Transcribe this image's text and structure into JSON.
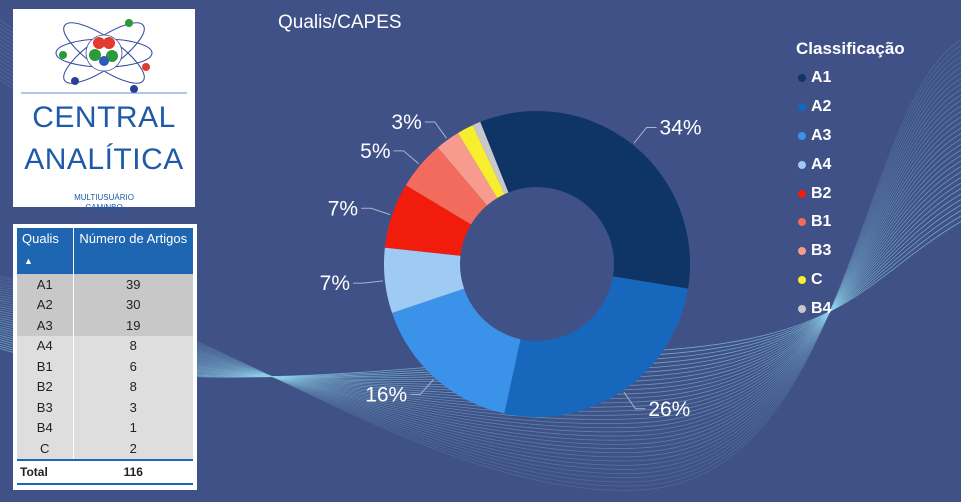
{
  "logo": {
    "title_line1": "CENTRAL",
    "title_line2": "ANALÍTICA",
    "subtitle_line1": "MULTIUSUÁRIO",
    "subtitle_line2": "CAM/NBQ"
  },
  "table": {
    "headers": [
      "Qualis",
      "Número de Artigos"
    ],
    "rows": [
      {
        "qualis": "A1",
        "count": "39"
      },
      {
        "qualis": "A2",
        "count": "30"
      },
      {
        "qualis": "A3",
        "count": "19"
      },
      {
        "qualis": "A4",
        "count": "8"
      },
      {
        "qualis": "B1",
        "count": "6"
      },
      {
        "qualis": "B2",
        "count": "8"
      },
      {
        "qualis": "B3",
        "count": "3"
      },
      {
        "qualis": "B4",
        "count": "1"
      },
      {
        "qualis": "C",
        "count": "2"
      }
    ],
    "total_label": "Total",
    "total_value": "116"
  },
  "chart_data": {
    "type": "pie",
    "title": "Qualis/CAPES",
    "legend_title": "Classificação",
    "legend_position": "right",
    "categories": [
      "A1",
      "A2",
      "A3",
      "A4",
      "B2",
      "B1",
      "B3",
      "C",
      "B4"
    ],
    "values": [
      39,
      30,
      19,
      8,
      8,
      6,
      3,
      2,
      1
    ],
    "data_labels": [
      "34%",
      "26%",
      "16%",
      "7%",
      "7%",
      "5%",
      "3%",
      "",
      ""
    ],
    "colors": [
      "#0e3566",
      "#1768bd",
      "#3a93e8",
      "#9fcaf3",
      "#f21c0d",
      "#f26b5d",
      "#f79b8f",
      "#f7ef2e",
      "#c8c8cc"
    ],
    "donut": true
  }
}
